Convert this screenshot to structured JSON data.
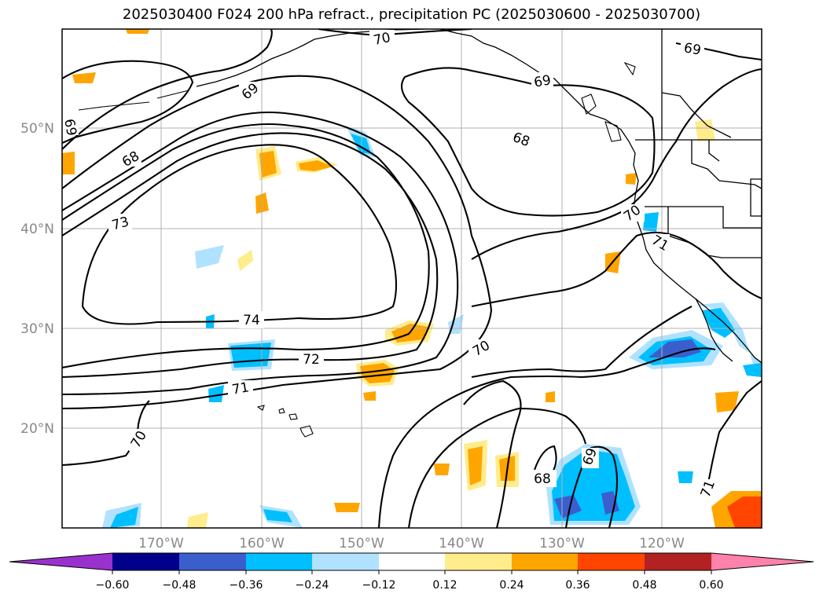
{
  "title": "2025030400 F024 200 hPa refract., precipitation PC (2025030600 - 2025030700)",
  "map": {
    "lat_labels": [
      "50°N",
      "40°N",
      "30°N",
      "20°N"
    ],
    "lon_labels": [
      "170°W",
      "160°W",
      "150°W",
      "140°W",
      "130°W",
      "120°W"
    ],
    "contour_labels": [
      "70",
      "69",
      "69",
      "68",
      "68",
      "73",
      "74",
      "72",
      "71",
      "70",
      "69",
      "68",
      "70",
      "70",
      "71",
      "71",
      "69",
      "69"
    ]
  },
  "colorbar": {
    "colors": [
      "#9932cc",
      "#00008b",
      "#3a5fcd",
      "#00bfff",
      "#b0e2ff",
      "#ffffff",
      "#ffec8b",
      "#ffa500",
      "#ff4500",
      "#b22222",
      "#ff82ab"
    ],
    "ticks": [
      "−0.60",
      "−0.48",
      "−0.36",
      "−0.24",
      "−0.12",
      "0.12",
      "0.24",
      "0.36",
      "0.48",
      "0.60"
    ]
  }
}
